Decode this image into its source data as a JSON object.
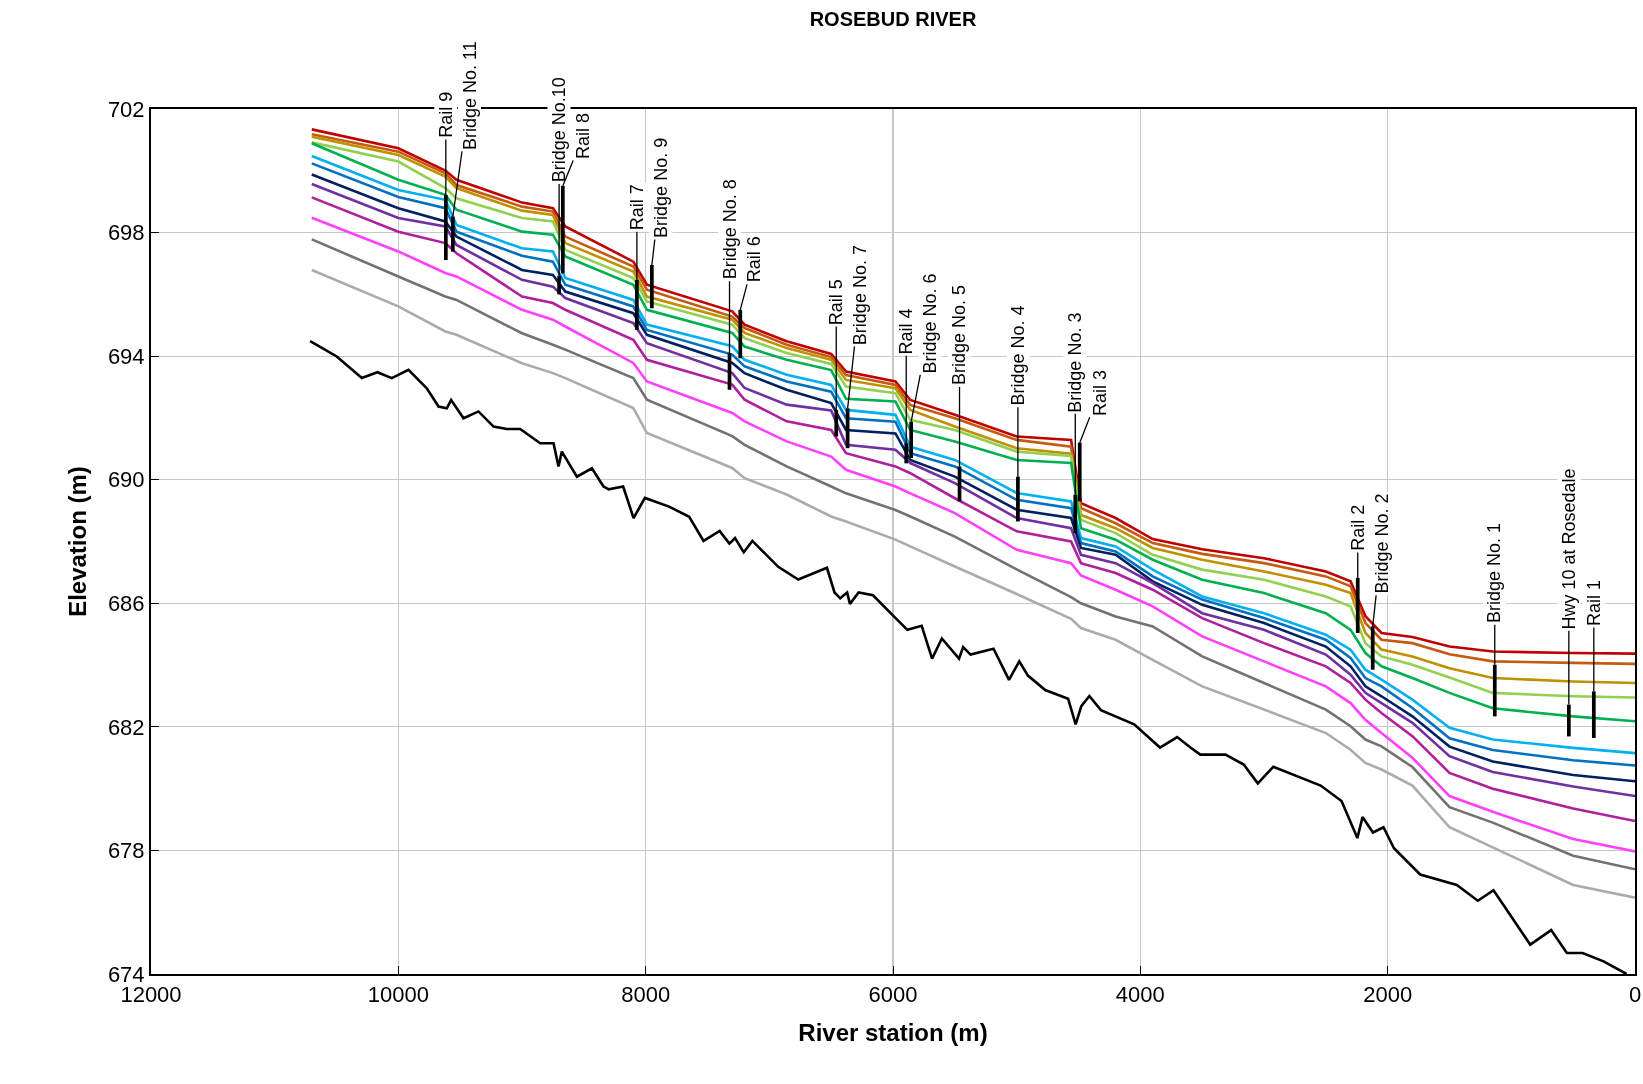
{
  "chart_data": {
    "type": "line",
    "title": "ROSEBUD RIVER",
    "xlabel": "River station (m)",
    "ylabel": "Elevation (m)",
    "xlim": [
      12000,
      0
    ],
    "xticks": [
      12000,
      10000,
      8000,
      6000,
      4000,
      2000,
      0
    ],
    "ylim": [
      674,
      702
    ],
    "yticks": [
      674,
      678,
      682,
      686,
      690,
      694,
      698,
      702
    ],
    "grid": true,
    "series": [
      {
        "color": "#c00000",
        "x": [
          10700,
          10000,
          9620,
          9530,
          9000,
          8750,
          8650,
          8100,
          7990,
          7300,
          7200,
          6860,
          6500,
          6380,
          5980,
          5860,
          5500,
          5000,
          4560,
          4480,
          4200,
          3900,
          3500,
          3000,
          2500,
          2300,
          2180,
          2050,
          1800,
          1500,
          1150,
          500,
          0
        ],
        "values": [
          701.34,
          700.73,
          700.01,
          699.71,
          698.97,
          698.79,
          698.2,
          697.06,
          696.31,
          695.45,
          695.02,
          694.48,
          694.07,
          693.5,
          693.18,
          692.58,
          692.1,
          691.4,
          691.29,
          689.24,
          688.76,
          688.08,
          687.75,
          687.46,
          687.03,
          686.71,
          685.58,
          685.04,
          684.91,
          684.6,
          684.44,
          684.39,
          684.37
        ]
      },
      {
        "color": "#c55a11",
        "x": [
          10700,
          10000,
          9620,
          9530,
          9000,
          8750,
          8650,
          8100,
          7990,
          7300,
          7200,
          6860,
          6500,
          6380,
          5980,
          5860,
          5500,
          5000,
          4560,
          4480,
          4200,
          3900,
          3500,
          3000,
          2500,
          2300,
          2180,
          2050,
          1800,
          1500,
          1150,
          500,
          0
        ],
        "values": [
          701.18,
          700.62,
          699.92,
          699.54,
          698.84,
          698.68,
          697.87,
          696.9,
          696.15,
          695.28,
          694.91,
          694.37,
          693.97,
          693.39,
          693.07,
          692.42,
          691.99,
          691.29,
          691.07,
          689.08,
          688.59,
          687.95,
          687.6,
          687.3,
          686.87,
          686.55,
          685.36,
          684.82,
          684.71,
          684.35,
          684.12,
          684.07,
          684.04
        ]
      },
      {
        "color": "#bf9000",
        "x": [
          10700,
          10000,
          9620,
          9530,
          9000,
          8750,
          8650,
          8100,
          7990,
          7300,
          7200,
          6860,
          6500,
          6380,
          5980,
          5860,
          5500,
          5000,
          4560,
          4480,
          4200,
          3900,
          3500,
          3000,
          2500,
          2300,
          2180,
          2050,
          1800,
          1500,
          1150,
          500,
          0
        ],
        "values": [
          701.1,
          700.51,
          699.81,
          699.44,
          698.71,
          698.57,
          697.66,
          696.74,
          695.93,
          695.18,
          694.75,
          694.26,
          693.88,
          693.23,
          692.96,
          692.26,
          691.72,
          691.02,
          690.84,
          688.86,
          688.43,
          687.79,
          687.41,
          687.03,
          686.6,
          686.33,
          685.04,
          684.5,
          684.28,
          683.9,
          683.58,
          683.47,
          683.42
        ]
      },
      {
        "color": "#92d050",
        "x": [
          10700,
          10000,
          9620,
          9530,
          9000,
          8750,
          8650,
          8100,
          7990,
          7300,
          7200,
          6860,
          6500,
          6380,
          5980,
          5860,
          5500,
          5000,
          4560,
          4480,
          4200,
          3900,
          3500,
          3000,
          2500,
          2300,
          2180,
          2050,
          1800,
          1500,
          1150,
          500,
          0
        ],
        "values": [
          700.92,
          700.3,
          699.44,
          699.11,
          698.47,
          698.36,
          697.44,
          696.53,
          695.77,
          695.02,
          694.58,
          694.1,
          693.75,
          693.02,
          692.8,
          691.94,
          691.61,
          690.91,
          690.77,
          688.7,
          688.27,
          687.57,
          687.09,
          686.76,
          686.22,
          685.9,
          684.71,
          684.28,
          684.01,
          683.6,
          683.1,
          682.99,
          682.95
        ]
      },
      {
        "color": "#00b050",
        "x": [
          10700,
          10000,
          9620,
          9530,
          9000,
          8750,
          8650,
          8100,
          7990,
          7300,
          7200,
          6860,
          6500,
          6380,
          5980,
          5860,
          5500,
          5000,
          4560,
          4480,
          4200,
          3900,
          3500,
          3000,
          2500,
          2300,
          2180,
          2050,
          1800,
          1500,
          1150,
          500,
          0
        ],
        "values": [
          700.89,
          699.71,
          699.22,
          698.74,
          698.03,
          697.93,
          697.23,
          696.31,
          695.5,
          694.75,
          694.31,
          693.88,
          693.55,
          692.62,
          692.53,
          691.61,
          691.24,
          690.64,
          690.54,
          688.43,
          688.06,
          687.41,
          686.76,
          686.33,
          685.68,
          685.14,
          684.39,
          683.96,
          683.58,
          683.1,
          682.6,
          682.34,
          682.18
        ]
      },
      {
        "color": "#00b0f0",
        "x": [
          10700,
          10000,
          9620,
          9530,
          9000,
          8750,
          8650,
          8100,
          7990,
          7300,
          7200,
          6860,
          6500,
          6380,
          5980,
          5860,
          5500,
          5000,
          4560,
          4480,
          4200,
          3900,
          3500,
          3000,
          2500,
          2300,
          2180,
          2050,
          1800,
          1500,
          1150,
          500,
          0
        ],
        "values": [
          700.48,
          699.38,
          699.06,
          698.25,
          697.49,
          697.39,
          696.53,
          695.82,
          695.02,
          694.32,
          693.88,
          693.4,
          693.07,
          692.26,
          692.1,
          691.07,
          690.64,
          689.57,
          689.3,
          688.11,
          687.84,
          687.09,
          686.22,
          685.68,
          684.98,
          684.5,
          683.85,
          683.53,
          682.88,
          681.97,
          681.59,
          681.32,
          681.15
        ]
      },
      {
        "color": "#0070c0",
        "x": [
          10700,
          10000,
          9620,
          9530,
          9000,
          8750,
          8650,
          8100,
          7990,
          7300,
          7200,
          6860,
          6500,
          6380,
          5980,
          5860,
          5500,
          5000,
          4560,
          4480,
          4200,
          3900,
          3500,
          3000,
          2500,
          2300,
          2180,
          2050,
          1800,
          1500,
          1150,
          500,
          0
        ],
        "values": [
          700.24,
          699.15,
          698.79,
          698.03,
          697.25,
          697.06,
          696.31,
          695.61,
          694.85,
          694.05,
          693.67,
          693.18,
          692.85,
          691.99,
          691.88,
          690.86,
          690.43,
          689.35,
          689.08,
          687.95,
          687.68,
          686.87,
          686.12,
          685.52,
          684.82,
          684.23,
          683.58,
          683.31,
          682.61,
          681.63,
          681.25,
          680.92,
          680.75
        ]
      },
      {
        "color": "#002060",
        "x": [
          10700,
          10000,
          9620,
          9530,
          9000,
          8750,
          8650,
          8100,
          7990,
          7300,
          7200,
          6860,
          6500,
          6380,
          5980,
          5860,
          5500,
          5000,
          4560,
          4480,
          4200,
          3900,
          3500,
          3000,
          2500,
          2300,
          2180,
          2050,
          1800,
          1500,
          1150,
          500,
          0
        ],
        "values": [
          699.88,
          698.79,
          698.36,
          697.87,
          696.79,
          696.63,
          696.09,
          695.39,
          694.69,
          693.78,
          693.45,
          692.91,
          692.48,
          691.61,
          691.5,
          690.64,
          690.1,
          689.03,
          688.76,
          687.79,
          687.57,
          686.71,
          685.95,
          685.36,
          684.6,
          683.96,
          683.31,
          682.99,
          682.34,
          681.36,
          680.88,
          680.44,
          680.24
        ]
      },
      {
        "color": "#7030a0",
        "x": [
          10700,
          10000,
          9620,
          9530,
          9000,
          8750,
          8650,
          8100,
          7990,
          7300,
          7200,
          6860,
          6500,
          6380,
          5980,
          5860,
          5500,
          5000,
          4560,
          4480,
          4200,
          3900,
          3500,
          3000,
          2500,
          2300,
          2180,
          2050,
          1800,
          1500,
          1150,
          500,
          0
        ],
        "values": [
          699.57,
          698.47,
          698.2,
          697.6,
          696.47,
          696.25,
          695.88,
          695.07,
          694.42,
          693.45,
          692.97,
          692.43,
          692.24,
          691.13,
          690.97,
          690.54,
          689.89,
          688.76,
          688.43,
          687.57,
          687.3,
          686.65,
          685.68,
          685.14,
          684.34,
          683.69,
          683.1,
          682.77,
          682.13,
          681.05,
          680.54,
          680.07,
          679.76
        ]
      },
      {
        "color": "#b01f9c",
        "x": [
          10700,
          10000,
          9620,
          9530,
          9000,
          8750,
          8650,
          8100,
          7990,
          7300,
          7200,
          6860,
          6500,
          6380,
          5980,
          5860,
          5500,
          5000,
          4560,
          4480,
          4200,
          3900,
          3500,
          3000,
          2500,
          2300,
          2180,
          2050,
          1800,
          1500,
          1150,
          500,
          0
        ],
        "values": [
          699.14,
          698.03,
          697.66,
          697.33,
          695.93,
          695.72,
          695.5,
          694.53,
          693.88,
          693.08,
          692.59,
          691.89,
          691.61,
          690.86,
          690.43,
          690.21,
          689.4,
          688.33,
          688.0,
          687.3,
          686.98,
          686.44,
          685.52,
          684.71,
          683.96,
          683.42,
          682.88,
          682.45,
          681.7,
          680.51,
          680.0,
          679.36,
          678.95
        ]
      },
      {
        "color": "#ff40ff",
        "x": [
          10700,
          10000,
          9620,
          9530,
          9000,
          8750,
          8650,
          8100,
          7990,
          7300,
          7200,
          6860,
          6500,
          6380,
          5980,
          5860,
          5500,
          5000,
          4560,
          4480,
          4200,
          3900,
          3500,
          3000,
          2500,
          2300,
          2180,
          2050,
          1800,
          1500,
          1150,
          500,
          0
        ],
        "values": [
          698.48,
          697.39,
          696.69,
          696.58,
          695.5,
          695.18,
          694.96,
          693.78,
          693.18,
          692.16,
          691.89,
          691.24,
          690.75,
          690.32,
          689.78,
          689.56,
          688.92,
          687.73,
          687.3,
          686.9,
          686.44,
          685.9,
          684.93,
          684.12,
          683.31,
          682.77,
          682.23,
          681.8,
          681.0,
          679.76,
          679.25,
          678.37,
          677.97
        ]
      },
      {
        "color": "#767171",
        "x": [
          10700,
          10000,
          9620,
          9530,
          9000,
          8750,
          8650,
          8100,
          7990,
          7300,
          7200,
          6860,
          6500,
          6380,
          5980,
          5860,
          5500,
          5000,
          4560,
          4480,
          4200,
          3900,
          3500,
          3000,
          2500,
          2300,
          2180,
          2050,
          1800,
          1500,
          1150,
          500,
          0
        ],
        "values": [
          697.78,
          696.58,
          695.93,
          695.82,
          694.74,
          694.37,
          694.21,
          693.29,
          692.59,
          691.41,
          691.13,
          690.43,
          689.78,
          689.56,
          689.02,
          688.81,
          688.16,
          687.1,
          686.2,
          686.0,
          685.57,
          685.25,
          684.28,
          683.42,
          682.56,
          682.02,
          681.59,
          681.37,
          680.7,
          679.4,
          678.9,
          677.83,
          677.39
        ]
      },
      {
        "color": "#aeaaaa",
        "x": [
          10700,
          10000,
          9620,
          9530,
          9000,
          8750,
          8650,
          8100,
          7990,
          7300,
          7200,
          6860,
          6500,
          6380,
          5980,
          5860,
          5500,
          5000,
          4560,
          4480,
          4200,
          3900,
          3500,
          3000,
          2500,
          2300,
          2180,
          2050,
          1800,
          1500,
          1150,
          500,
          0
        ],
        "values": [
          696.79,
          695.61,
          694.8,
          694.69,
          693.77,
          693.45,
          693.29,
          692.32,
          691.51,
          690.38,
          690.05,
          689.52,
          688.81,
          688.65,
          688.06,
          687.84,
          687.19,
          686.3,
          685.5,
          685.2,
          684.82,
          684.17,
          683.31,
          682.56,
          681.8,
          681.26,
          680.83,
          680.62,
          680.1,
          678.75,
          678.1,
          676.88,
          676.47
        ]
      },
      {
        "color": "#000000",
        "x": [
          10713,
          10498,
          10295,
          10169,
          10053,
          9918,
          9770,
          9675,
          9608,
          9573,
          9473,
          9352,
          9230,
          9123,
          9015,
          8853,
          8745,
          8705,
          8678,
          8556,
          8435,
          8341,
          8298,
          8182,
          8098,
          8006,
          7811,
          7648,
          7532,
          7402,
          7323,
          7277,
          7207,
          7137,
          6928,
          6766,
          6534,
          6473,
          6427,
          6371,
          6348,
          6278,
          6162,
          5977,
          5884,
          5768,
          5684,
          5605,
          5466,
          5433,
          5373,
          5187,
          5062,
          4979,
          4909,
          4769,
          4584,
          4523,
          4477,
          4412,
          4319,
          4050,
          3841,
          3702,
          3595,
          3515,
          3312,
          3164,
          3050,
          2924,
          2542,
          2373,
          2245,
          2203,
          2119,
          2034,
          1949,
          1737,
          1441,
          1271,
          1144,
          847,
          678,
          551,
          424,
          254,
          68
        ],
        "values": [
          694.49,
          693.99,
          693.29,
          693.48,
          693.29,
          693.56,
          692.96,
          692.37,
          692.31,
          692.58,
          691.99,
          692.21,
          691.72,
          691.64,
          691.64,
          691.18,
          691.18,
          690.43,
          690.91,
          690.1,
          690.37,
          689.78,
          689.69,
          689.78,
          688.76,
          689.41,
          689.13,
          688.8,
          688.02,
          688.34,
          687.93,
          688.11,
          687.65,
          688.02,
          687.18,
          686.77,
          687.15,
          686.35,
          686.16,
          686.35,
          685.98,
          686.35,
          686.26,
          685.51,
          685.14,
          685.27,
          684.21,
          684.86,
          684.21,
          684.58,
          684.34,
          684.53,
          683.52,
          684.12,
          683.66,
          683.19,
          682.91,
          682.08,
          682.67,
          683.0,
          682.54,
          682.08,
          681.33,
          681.67,
          681.33,
          681.1,
          681.1,
          680.78,
          680.17,
          680.71,
          680.1,
          679.6,
          678.4,
          679.08,
          678.58,
          678.75,
          678.07,
          677.22,
          676.88,
          676.37,
          676.71,
          674.95,
          675.42,
          674.68,
          674.68,
          674.41,
          674.0
        ]
      },
      {
        "type": "bar",
        "color": "#000000",
        "x": [
          9616,
          9559,
          8700,
          8670,
          8071,
          7950,
          7322,
          7235,
          6459,
          6367,
          5893,
          5853,
          5462,
          4990,
          4526,
          4490,
          2242,
          2121,
          1134,
          535,
          333
        ],
        "base": [
          697.11,
          697.38,
          696.0,
          696.68,
          694.85,
          695.55,
          692.91,
          693.93,
          691.4,
          691.02,
          690.53,
          690.7,
          689.3,
          688.65,
          688.27,
          689.3,
          685.04,
          683.85,
          682.34,
          681.69,
          681.64
        ],
        "values": [
          2.11,
          1.14,
          0.6,
          2.83,
          1.62,
          1.4,
          1.18,
          1.57,
          0.86,
          1.29,
          0.65,
          1.18,
          1.13,
          1.45,
          1.24,
          1.9,
          1.78,
          1.4,
          1.67,
          1.03,
          1.51
        ]
      }
    ],
    "annotations": [
      {
        "text": "Rail 9",
        "x": 9616,
        "y": 699.22
      },
      {
        "text": "Bridge No. 11",
        "x": 9559,
        "y": 698.52
      },
      {
        "text": "Bridge No.10",
        "x": 8700,
        "y": 696.6
      },
      {
        "text": "Rail 8",
        "x": 8670,
        "y": 699.51
      },
      {
        "text": "Rail 7",
        "x": 8071,
        "y": 696.47
      },
      {
        "text": "Bridge No. 9",
        "x": 7950,
        "y": 696.95
      },
      {
        "text": "Bridge No. 8",
        "x": 7322,
        "y": 694.09
      },
      {
        "text": "Rail 6",
        "x": 7235,
        "y": 695.5
      },
      {
        "text": "Rail 5",
        "x": 6459,
        "y": 692.26
      },
      {
        "text": "Bridge No. 7",
        "x": 6367,
        "y": 692.31
      },
      {
        "text": "Rail 4",
        "x": 5893,
        "y": 691.18
      },
      {
        "text": "Bridge No. 6",
        "x": 5853,
        "y": 691.88
      },
      {
        "text": "Bridge No. 5",
        "x": 5462,
        "y": 690.43
      },
      {
        "text": "Bridge No. 4",
        "x": 4990,
        "y": 690.1
      },
      {
        "text": "Bridge No. 3",
        "x": 4526,
        "y": 689.51
      },
      {
        "text": "Rail 3",
        "x": 4490,
        "y": 691.2
      },
      {
        "text": "Rail 2",
        "x": 2242,
        "y": 686.82
      },
      {
        "text": "Bridge No. 2",
        "x": 2121,
        "y": 685.25
      },
      {
        "text": "Bridge No. 1",
        "x": 1134,
        "y": 684.01
      },
      {
        "text": "Hwy 10 at Rosedale",
        "x": 535,
        "y": 682.72
      },
      {
        "text": "Rail 1",
        "x": 333,
        "y": 683.15
      }
    ]
  }
}
